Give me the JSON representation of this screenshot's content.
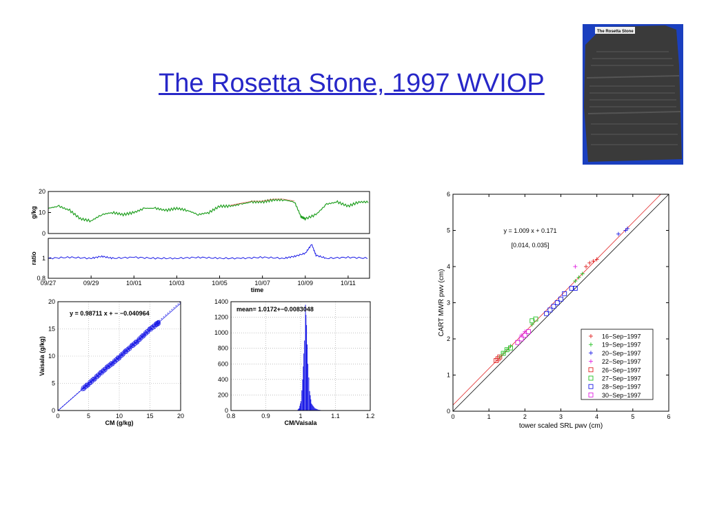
{
  "slide": {
    "title": "The Rosetta Stone, 1997 WVIOP",
    "photo_label": "The Rosetta Stone"
  },
  "colors": {
    "title": "#2727c8",
    "photo_background": "#1a3fbf",
    "stone": "#3a3a3a",
    "mixing_green": "#22a022",
    "mixing_red": "#d03020",
    "blue": "#1a1ae6",
    "fit_red": "#e02020"
  },
  "chart_data": [
    {
      "id": "mixing-ratio-timeseries",
      "type": "line",
      "ylabel": "g/kg",
      "ylim": [
        0,
        20
      ],
      "yticks": [
        "0",
        "10",
        "20"
      ],
      "xlim": [
        0,
        15
      ],
      "grid": false,
      "series": [
        {
          "color": "#22a022",
          "x": [
            0,
            0.5,
            1,
            1.5,
            2,
            2.5,
            3,
            3.5,
            4,
            4.5,
            5,
            5.5,
            6,
            6.5,
            7,
            7.5,
            8,
            8.5,
            9,
            9.5,
            10,
            10.5,
            11,
            11.5,
            11.8,
            12,
            12.5,
            13,
            13.5,
            14,
            14.5,
            15
          ],
          "values": [
            12,
            13,
            11,
            7,
            6,
            9,
            10,
            9,
            10,
            12,
            12,
            11,
            12,
            11,
            9,
            10,
            13,
            13,
            14,
            15,
            15,
            16,
            16,
            15,
            8,
            7,
            9,
            14,
            15,
            13,
            15,
            15
          ]
        }
      ]
    },
    {
      "id": "ratio-timeseries",
      "type": "line",
      "ylabel": "ratio",
      "xlabel": "time",
      "ylim": [
        0.8,
        1.2
      ],
      "yticks": [
        "0.8",
        "1",
        ""
      ],
      "xticks": [
        "09/27",
        "09/29",
        "10/01",
        "10/03",
        "10/05",
        "10/07",
        "10/09",
        "10/11"
      ],
      "xlim": [
        0,
        15
      ],
      "grid": false,
      "series": [
        {
          "color": "#1a1ae6",
          "x": [
            0,
            1,
            2,
            2.5,
            3,
            4,
            5,
            6,
            7,
            8,
            9,
            10,
            11,
            11.5,
            12,
            12.3,
            12.5,
            13,
            14,
            15
          ],
          "values": [
            1.0,
            1.01,
            1.0,
            1.02,
            1.0,
            1.01,
            1.0,
            1.0,
            1.01,
            1.0,
            1.0,
            1.01,
            1.0,
            1.02,
            1.05,
            1.14,
            1.03,
            1.0,
            1.01,
            1.0
          ]
        }
      ]
    },
    {
      "id": "cm-vs-vaisala-scatter",
      "type": "scatter",
      "xlabel": "CM (g/kg)",
      "ylabel": "Vaisala (g/kg)",
      "xlim": [
        0,
        20
      ],
      "ylim": [
        0,
        20
      ],
      "xticks": [
        "0",
        "5",
        "10",
        "15",
        "20"
      ],
      "yticks": [
        "0",
        "5",
        "10",
        "15",
        "20"
      ],
      "annotation": "y = 0.98711 x + − −0.040964",
      "grid": true,
      "fit": {
        "slope": 0.98711,
        "intercept": -0.040964
      },
      "series": [
        {
          "color": "#1a1ae6",
          "x": [
            4,
            5,
            6,
            7,
            8,
            9,
            10,
            11,
            12,
            13,
            14,
            15,
            16,
            16.5
          ],
          "values": [
            3.9,
            4.9,
            5.9,
            6.9,
            7.9,
            8.8,
            9.8,
            10.8,
            11.8,
            12.8,
            13.9,
            14.9,
            15.8,
            16.2
          ]
        }
      ]
    },
    {
      "id": "ratio-histogram",
      "type": "bar",
      "xlabel": "CM/Vaisala",
      "xlim": [
        0.8,
        1.2
      ],
      "ylim": [
        0,
        1400
      ],
      "xticks": [
        "0.8",
        "0.9",
        "1",
        "1.1",
        "1.2"
      ],
      "yticks": [
        "0",
        "200",
        "400",
        "600",
        "800",
        "1000",
        "1200",
        "1400"
      ],
      "annotation": "mean= 1.0172+−0.0083048",
      "grid": true,
      "x": [
        0.99,
        0.995,
        1.0,
        1.005,
        1.01,
        1.013,
        1.016,
        1.02,
        1.025,
        1.03,
        1.04,
        1.05,
        1.06
      ],
      "values": [
        5,
        30,
        120,
        400,
        900,
        1360,
        1100,
        600,
        250,
        90,
        30,
        10,
        3
      ]
    },
    {
      "id": "cart-mwr-vs-srl",
      "type": "scatter",
      "xlabel": "tower scaled SRL pwv (cm)",
      "ylabel": "CART MWR pwv (cm)",
      "xlim": [
        0,
        6
      ],
      "ylim": [
        0,
        6
      ],
      "xticks": [
        "0",
        "1",
        "2",
        "3",
        "4",
        "5",
        "6"
      ],
      "yticks": [
        "0",
        "1",
        "2",
        "3",
        "4",
        "5",
        "6"
      ],
      "annotation": "y = 1.009 x + 0.171",
      "annotation2": "[0.014, 0.035]",
      "fit": {
        "slope": 1.009,
        "intercept": 0.171
      },
      "legend_position": "bottom-right",
      "series": [
        {
          "name": "16−Sep−1997",
          "marker": "plus",
          "color": "#e02020",
          "x": [
            3.7,
            3.8,
            3.9,
            4.0
          ],
          "values": [
            4.0,
            4.1,
            4.15,
            4.2
          ]
        },
        {
          "name": "19−Sep−1997",
          "marker": "plus",
          "color": "#22c022",
          "x": [
            1.3,
            1.4,
            1.5,
            1.6,
            2.2,
            3.4,
            3.5,
            3.6
          ],
          "values": [
            1.5,
            1.6,
            1.7,
            1.8,
            2.4,
            3.6,
            3.7,
            3.8
          ]
        },
        {
          "name": "20−Sep−1997",
          "marker": "plus",
          "color": "#1a1ae6",
          "x": [
            4.6,
            4.8,
            4.85
          ],
          "values": [
            4.9,
            5.0,
            5.05
          ]
        },
        {
          "name": "22−Sep−1997",
          "marker": "plus",
          "color": "#e020e0",
          "x": [
            1.9,
            2.0,
            3.4
          ],
          "values": [
            2.1,
            2.2,
            4.0
          ]
        },
        {
          "name": "26−Sep−1997",
          "marker": "square",
          "color": "#e02020",
          "x": [
            1.2,
            1.25,
            1.3
          ],
          "values": [
            1.4,
            1.45,
            1.5
          ]
        },
        {
          "name": "27−Sep−1997",
          "marker": "square",
          "color": "#22c022",
          "x": [
            1.4,
            1.5,
            1.6,
            2.2,
            2.3
          ],
          "values": [
            1.6,
            1.7,
            1.75,
            2.5,
            2.55
          ]
        },
        {
          "name": "28−Sep−1997",
          "marker": "square",
          "color": "#1a1ae6",
          "x": [
            2.6,
            2.7,
            2.8,
            2.9,
            3.0,
            3.1,
            3.3,
            3.4
          ],
          "values": [
            2.7,
            2.8,
            2.9,
            3.0,
            3.1,
            3.25,
            3.4,
            3.4
          ]
        },
        {
          "name": "30−Sep−1997",
          "marker": "square",
          "color": "#e020e0",
          "x": [
            1.8,
            1.9,
            2.0,
            2.1
          ],
          "values": [
            1.9,
            2.0,
            2.1,
            2.2
          ]
        }
      ]
    }
  ]
}
